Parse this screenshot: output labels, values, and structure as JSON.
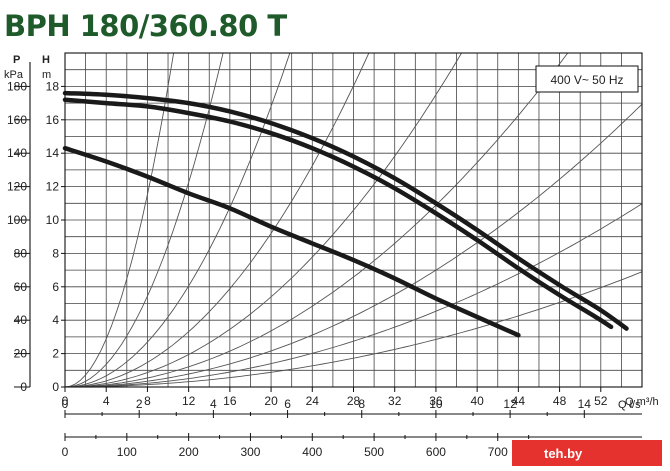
{
  "title": "BPH 180/360.80 T",
  "watermark": "teh.by",
  "chart_data": {
    "type": "line",
    "title": "BPH 180/360.80 T",
    "annotation": "400 V~ 50 Hz",
    "x_unit_label": "Q m³/h",
    "x_ticks": [
      0,
      4,
      8,
      12,
      16,
      20,
      24,
      28,
      32,
      36,
      40,
      44,
      48,
      52
    ],
    "xlim": [
      0,
      56
    ],
    "y_label": "H",
    "y_unit_label": "m",
    "y_ticks": [
      0,
      2,
      4,
      6,
      8,
      10,
      12,
      14,
      16,
      18
    ],
    "ylim": [
      0,
      20
    ],
    "y2_label": "P",
    "y2_unit_label": "kPa",
    "y2_ticks": [
      0,
      20,
      40,
      60,
      80,
      100,
      120,
      140,
      160,
      180
    ],
    "x2_unit_label": "Q l/s",
    "x2_ticks": [
      0,
      2,
      4,
      6,
      8,
      10,
      12,
      14
    ],
    "x3_unit_label": "Q l/min",
    "x3_ticks": [
      0,
      100,
      200,
      300,
      400,
      500,
      600,
      700
    ],
    "grid": true,
    "series": [
      {
        "values": [
          [
            0,
            17.6
          ],
          [
            4,
            17.5
          ],
          [
            8,
            17.3
          ],
          [
            12,
            17.0
          ],
          [
            16,
            16.5
          ],
          [
            20,
            15.8
          ],
          [
            24,
            14.9
          ],
          [
            28,
            13.8
          ],
          [
            32,
            12.5
          ],
          [
            36,
            11.0
          ],
          [
            40,
            9.4
          ],
          [
            44,
            7.7
          ],
          [
            48,
            6.1
          ],
          [
            52,
            4.6
          ],
          [
            54.5,
            3.5
          ]
        ]
      },
      {
        "values": [
          [
            0,
            17.2
          ],
          [
            4,
            17.0
          ],
          [
            8,
            16.8
          ],
          [
            12,
            16.4
          ],
          [
            16,
            15.9
          ],
          [
            20,
            15.2
          ],
          [
            24,
            14.3
          ],
          [
            28,
            13.2
          ],
          [
            32,
            11.9
          ],
          [
            36,
            10.4
          ],
          [
            40,
            8.8
          ],
          [
            44,
            7.1
          ],
          [
            48,
            5.5
          ],
          [
            51.5,
            4.2
          ],
          [
            53,
            3.6
          ]
        ]
      },
      {
        "values": [
          [
            0,
            14.3
          ],
          [
            4,
            13.5
          ],
          [
            8,
            12.6
          ],
          [
            12,
            11.6
          ],
          [
            16,
            10.7
          ],
          [
            20,
            9.6
          ],
          [
            24,
            8.6
          ],
          [
            28,
            7.6
          ],
          [
            32,
            6.5
          ],
          [
            36,
            5.3
          ],
          [
            40,
            4.2
          ],
          [
            44,
            3.1
          ]
        ]
      }
    ],
    "system_curves_k": [
      0.18,
      0.085,
      0.042,
      0.023,
      0.0135,
      0.0084,
      0.0054,
      0.0035,
      0.0022
    ]
  }
}
